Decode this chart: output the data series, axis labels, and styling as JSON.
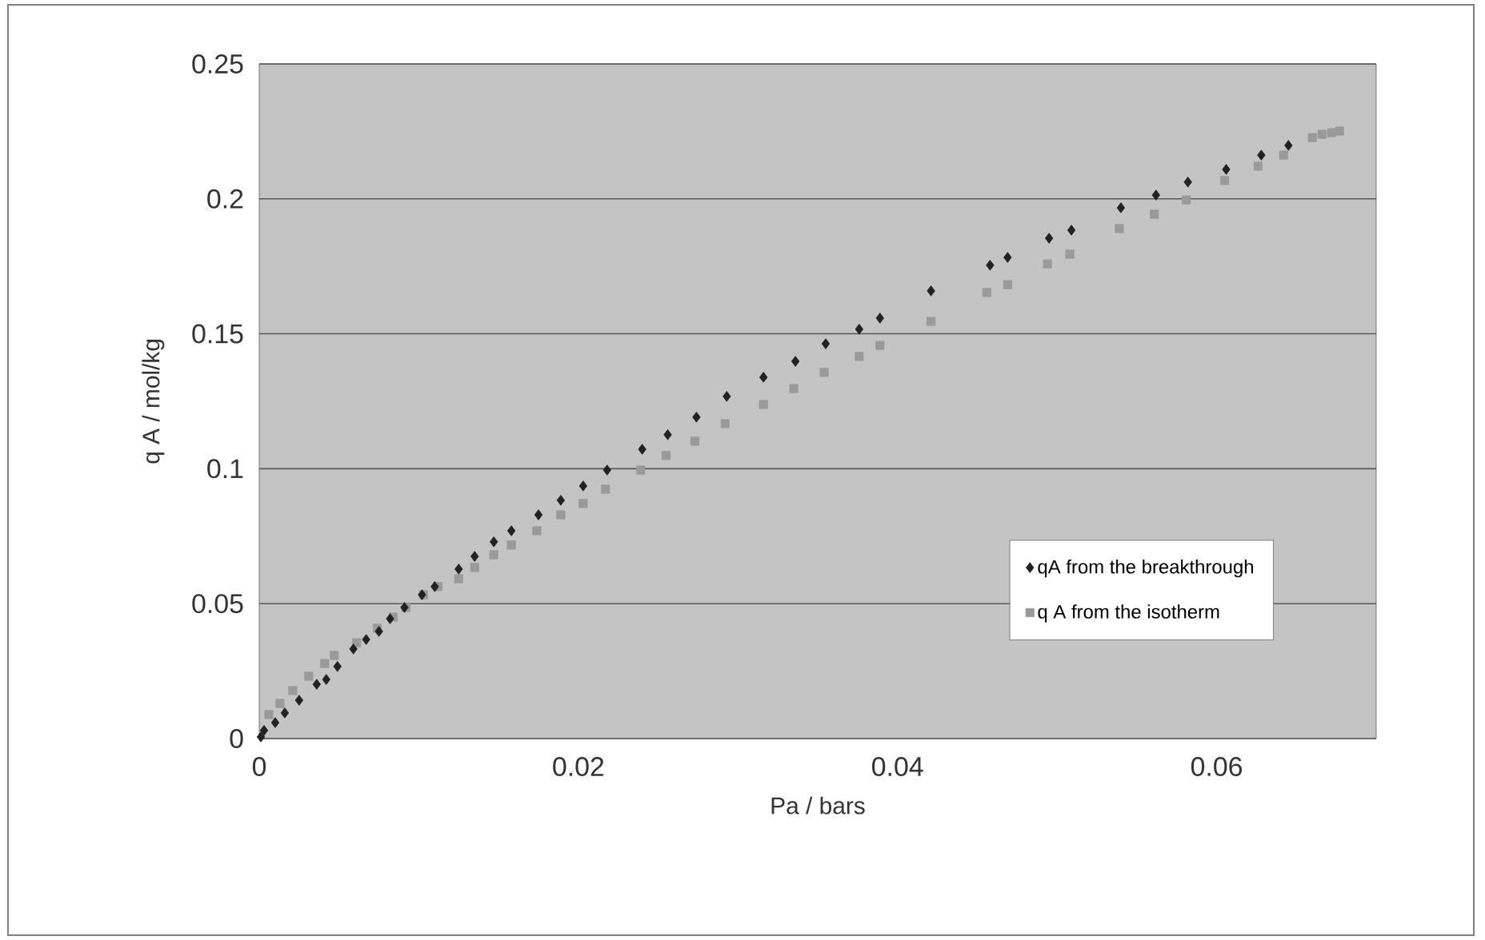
{
  "chart_data": {
    "type": "scatter",
    "xlabel": "Pa / bars",
    "ylabel": "q A / mol/kg",
    "xlim": [
      0,
      0.07
    ],
    "ylim": [
      0,
      0.25
    ],
    "xticks": [
      0,
      0.02,
      0.04,
      0.06
    ],
    "yticks": [
      0,
      0.05,
      0.1,
      0.15,
      0.2,
      0.25
    ],
    "grid": "y",
    "legend": "right",
    "series": [
      {
        "name": "qA from the breakthrough",
        "color": "#222222",
        "marker": "diamond",
        "x": [
          0.0001,
          0.0003,
          0.001,
          0.0016,
          0.0025,
          0.0036,
          0.0042,
          0.0049,
          0.0059,
          0.0067,
          0.0075,
          0.0082,
          0.0091,
          0.0102,
          0.011,
          0.0125,
          0.0135,
          0.0147,
          0.0158,
          0.0175,
          0.0189,
          0.0203,
          0.0218,
          0.024,
          0.0256,
          0.0274,
          0.0293,
          0.0316,
          0.0336,
          0.0355,
          0.0376,
          0.0389,
          0.0421,
          0.0458,
          0.0469,
          0.0495,
          0.0509,
          0.054,
          0.0562,
          0.0582,
          0.0606,
          0.0628,
          0.0645
        ],
        "values": [
          0.0006,
          0.003,
          0.0059,
          0.0095,
          0.0142,
          0.0201,
          0.0219,
          0.0267,
          0.0332,
          0.0367,
          0.0397,
          0.0444,
          0.0486,
          0.0533,
          0.0563,
          0.0628,
          0.0675,
          0.0729,
          0.077,
          0.0829,
          0.0883,
          0.0936,
          0.0995,
          0.1072,
          0.1126,
          0.1191,
          0.1268,
          0.1339,
          0.1398,
          0.1463,
          0.1517,
          0.1558,
          0.1659,
          0.1754,
          0.1783,
          0.1854,
          0.1884,
          0.1967,
          0.2014,
          0.2062,
          0.2109,
          0.2162,
          0.2198
        ]
      },
      {
        "name": "q A from the isotherm",
        "color": "#9a9a9a",
        "marker": "square",
        "x": [
          0.0006,
          0.0013,
          0.0021,
          0.0031,
          0.0041,
          0.0047,
          0.0061,
          0.0074,
          0.0084,
          0.0092,
          0.0103,
          0.0112,
          0.0125,
          0.0135,
          0.0147,
          0.0158,
          0.0174,
          0.0189,
          0.0203,
          0.0217,
          0.0239,
          0.0255,
          0.0273,
          0.0292,
          0.0316,
          0.0335,
          0.0354,
          0.0376,
          0.0389,
          0.0421,
          0.0456,
          0.0469,
          0.0494,
          0.0508,
          0.0539,
          0.0561,
          0.0581,
          0.0605,
          0.0626,
          0.0642,
          0.066,
          0.0666,
          0.0672,
          0.0677
        ],
        "values": [
          0.0089,
          0.013,
          0.0178,
          0.0231,
          0.0278,
          0.0308,
          0.0355,
          0.0409,
          0.045,
          0.0486,
          0.0533,
          0.0563,
          0.0592,
          0.0634,
          0.0681,
          0.0717,
          0.077,
          0.0829,
          0.0871,
          0.0924,
          0.0995,
          0.1049,
          0.1102,
          0.1167,
          0.1238,
          0.1297,
          0.1357,
          0.1416,
          0.1457,
          0.1546,
          0.1653,
          0.1682,
          0.1759,
          0.1795,
          0.189,
          0.1943,
          0.1996,
          0.2068,
          0.2121,
          0.2162,
          0.2227,
          0.2239,
          0.2245,
          0.2251
        ]
      }
    ]
  }
}
